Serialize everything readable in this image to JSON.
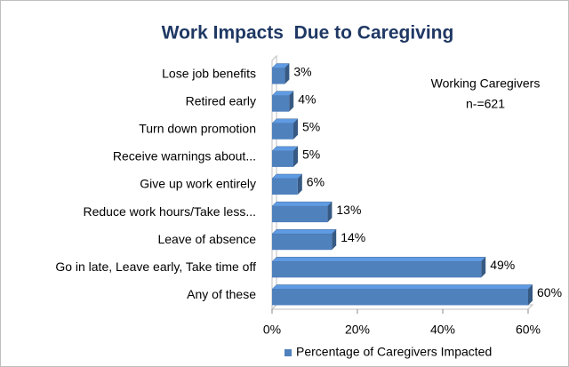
{
  "chart_data": {
    "type": "bar",
    "orientation": "horizontal",
    "title": "Work Impacts  Due to Caregiving",
    "annotations": [
      "Working Caregivers",
      "n-=621"
    ],
    "categories": [
      "Lose job benefits",
      "Retired early",
      "Turn down promotion",
      "Receive warnings about...",
      "Give up work entirely",
      "Reduce work hours/Take less...",
      "Leave of absence",
      "Go in late, Leave early, Take time off",
      "Any of these"
    ],
    "series": [
      {
        "name": "Percentage of Caregivers Impacted",
        "color": "#4f81bd",
        "values": [
          3,
          4,
          5,
          5,
          6,
          13,
          14,
          49,
          60
        ],
        "value_labels": [
          "3%",
          "4%",
          "5%",
          "5%",
          "6%",
          "13%",
          "14%",
          "49%",
          "60%"
        ]
      }
    ],
    "xlim": [
      0,
      60
    ],
    "xticks": [
      {
        "value": 0,
        "label": "0%"
      },
      {
        "value": 20,
        "label": "20%"
      },
      {
        "value": 40,
        "label": "40%"
      },
      {
        "value": 60,
        "label": "60%"
      }
    ],
    "legend": "bottom"
  }
}
